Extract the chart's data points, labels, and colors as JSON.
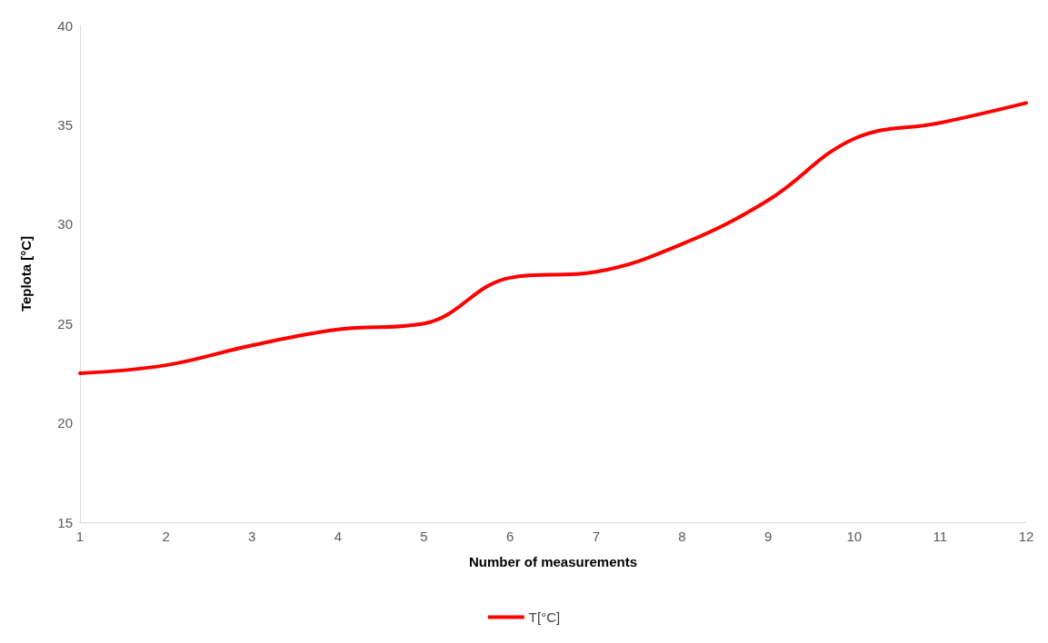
{
  "chart_data": {
    "type": "line",
    "xlabel": "Number of measurements",
    "ylabel": "Teplota [°C]",
    "x": [
      1,
      2,
      3,
      4,
      5,
      6,
      7,
      8,
      9,
      10,
      11,
      12
    ],
    "series": [
      {
        "name": "T[°C]",
        "color": "#ff0000",
        "values": [
          22.5,
          22.9,
          23.9,
          24.7,
          25.0,
          27.3,
          27.6,
          29.0,
          31.2,
          34.3,
          35.1,
          36.1
        ]
      }
    ],
    "xlim": [
      1,
      12
    ],
    "xticks": [
      1,
      2,
      3,
      4,
      5,
      6,
      7,
      8,
      9,
      10,
      11,
      12
    ],
    "ylim": [
      15,
      40
    ],
    "yticks": [
      15,
      20,
      25,
      30,
      35,
      40
    ],
    "grid": false,
    "legend": "bottom",
    "marker": "none",
    "line_style": "solid"
  }
}
